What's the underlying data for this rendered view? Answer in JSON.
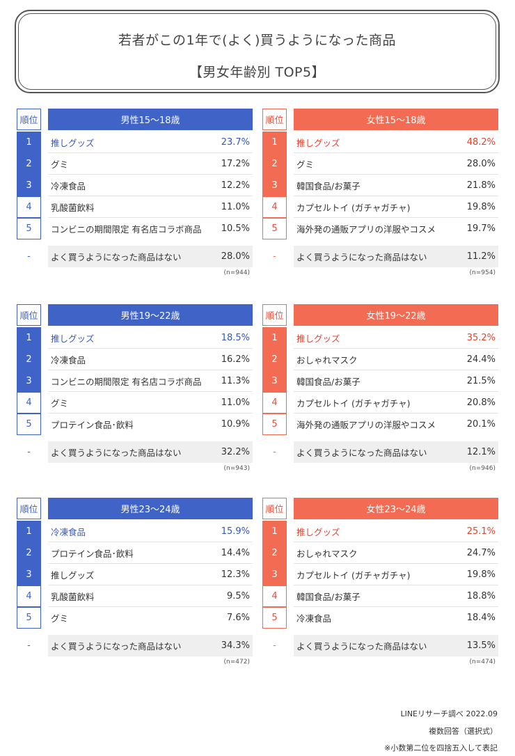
{
  "title": {
    "line1": "若者がこの1年で(よく)買うようになった商品",
    "line2": "【男女年齢別 TOP5】"
  },
  "rank_header": "順位",
  "panels": [
    {
      "header": "男性15～18歳",
      "items": [
        {
          "rank": "1",
          "label": "推しグッズ",
          "value": "23.7%"
        },
        {
          "rank": "2",
          "label": "グミ",
          "value": "17.2%"
        },
        {
          "rank": "3",
          "label": "冷凍食品",
          "value": "12.2%"
        },
        {
          "rank": "4",
          "label": "乳酸菌飲料",
          "value": "11.0%"
        },
        {
          "rank": "5",
          "label": "コンビニの期間限定 有名店コラボ商品",
          "value": "10.5%"
        }
      ],
      "none": {
        "rank": "-",
        "label": "よく買うようになった商品はない",
        "value": "28.0%"
      },
      "n": "(n=944)"
    },
    {
      "header": "女性15～18歳",
      "items": [
        {
          "rank": "1",
          "label": "推しグッズ",
          "value": "48.2%"
        },
        {
          "rank": "2",
          "label": "グミ",
          "value": "28.0%"
        },
        {
          "rank": "3",
          "label": "韓国食品/お菓子",
          "value": "21.8%"
        },
        {
          "rank": "4",
          "label": "カプセルトイ (ガチャガチャ)",
          "value": "19.8%"
        },
        {
          "rank": "5",
          "label": "海外発の通販アプリの洋服やコスメ",
          "value": "19.7%"
        }
      ],
      "none": {
        "rank": "-",
        "label": "よく買うようになった商品はない",
        "value": "11.2%"
      },
      "n": "(n=954)"
    },
    {
      "header": "男性19～22歳",
      "items": [
        {
          "rank": "1",
          "label": "推しグッズ",
          "value": "18.5%"
        },
        {
          "rank": "2",
          "label": "冷凍食品",
          "value": "16.2%"
        },
        {
          "rank": "3",
          "label": "コンビニの期間限定 有名店コラボ商品",
          "value": "11.3%"
        },
        {
          "rank": "4",
          "label": "グミ",
          "value": "11.0%"
        },
        {
          "rank": "5",
          "label": "プロテイン食品･飲料",
          "value": "10.9%"
        }
      ],
      "none": {
        "rank": "-",
        "label": "よく買うようになった商品はない",
        "value": "32.2%"
      },
      "n": "(n=943)"
    },
    {
      "header": "女性19～22歳",
      "items": [
        {
          "rank": "1",
          "label": "推しグッズ",
          "value": "35.2%"
        },
        {
          "rank": "2",
          "label": "おしゃれマスク",
          "value": "24.4%"
        },
        {
          "rank": "3",
          "label": "韓国食品/お菓子",
          "value": "21.5%"
        },
        {
          "rank": "4",
          "label": "カプセルトイ (ガチャガチャ)",
          "value": "20.8%"
        },
        {
          "rank": "5",
          "label": "海外発の通販アプリの洋服やコスメ",
          "value": "20.1%"
        }
      ],
      "none": {
        "rank": "-",
        "label": "よく買うようになった商品はない",
        "value": "12.1%"
      },
      "n": "(n=946)"
    },
    {
      "header": "男性23～24歳",
      "items": [
        {
          "rank": "1",
          "label": "冷凍食品",
          "value": "15.9%"
        },
        {
          "rank": "2",
          "label": "プロテイン食品･飲料",
          "value": "14.4%"
        },
        {
          "rank": "3",
          "label": "推しグッズ",
          "value": "12.3%"
        },
        {
          "rank": "4",
          "label": "乳酸菌飲料",
          "value": "9.5%"
        },
        {
          "rank": "5",
          "label": "グミ",
          "value": "7.6%"
        }
      ],
      "none": {
        "rank": "-",
        "label": "よく買うようになった商品はない",
        "value": "34.3%"
      },
      "n": "(n=472)"
    },
    {
      "header": "女性23～24歳",
      "items": [
        {
          "rank": "1",
          "label": "推しグッズ",
          "value": "25.1%"
        },
        {
          "rank": "2",
          "label": "おしゃれマスク",
          "value": "24.7%"
        },
        {
          "rank": "3",
          "label": "カプセルトイ (ガチャガチャ)",
          "value": "19.8%"
        },
        {
          "rank": "4",
          "label": "韓国食品/お菓子",
          "value": "18.8%"
        },
        {
          "rank": "5",
          "label": "冷凍食品",
          "value": "18.4%"
        }
      ],
      "none": {
        "rank": "-",
        "label": "よく買うようになった商品はない",
        "value": "13.5%"
      },
      "n": "(n=474)"
    }
  ],
  "footer": {
    "source": "LINEリサーチ調べ 2022.09",
    "answer_type": "複数回答（選択式）",
    "rounding_note": "※小数第二位を四捨五入して表記"
  },
  "colors": {
    "male": "#3f63c6",
    "female": "#f26b52"
  }
}
